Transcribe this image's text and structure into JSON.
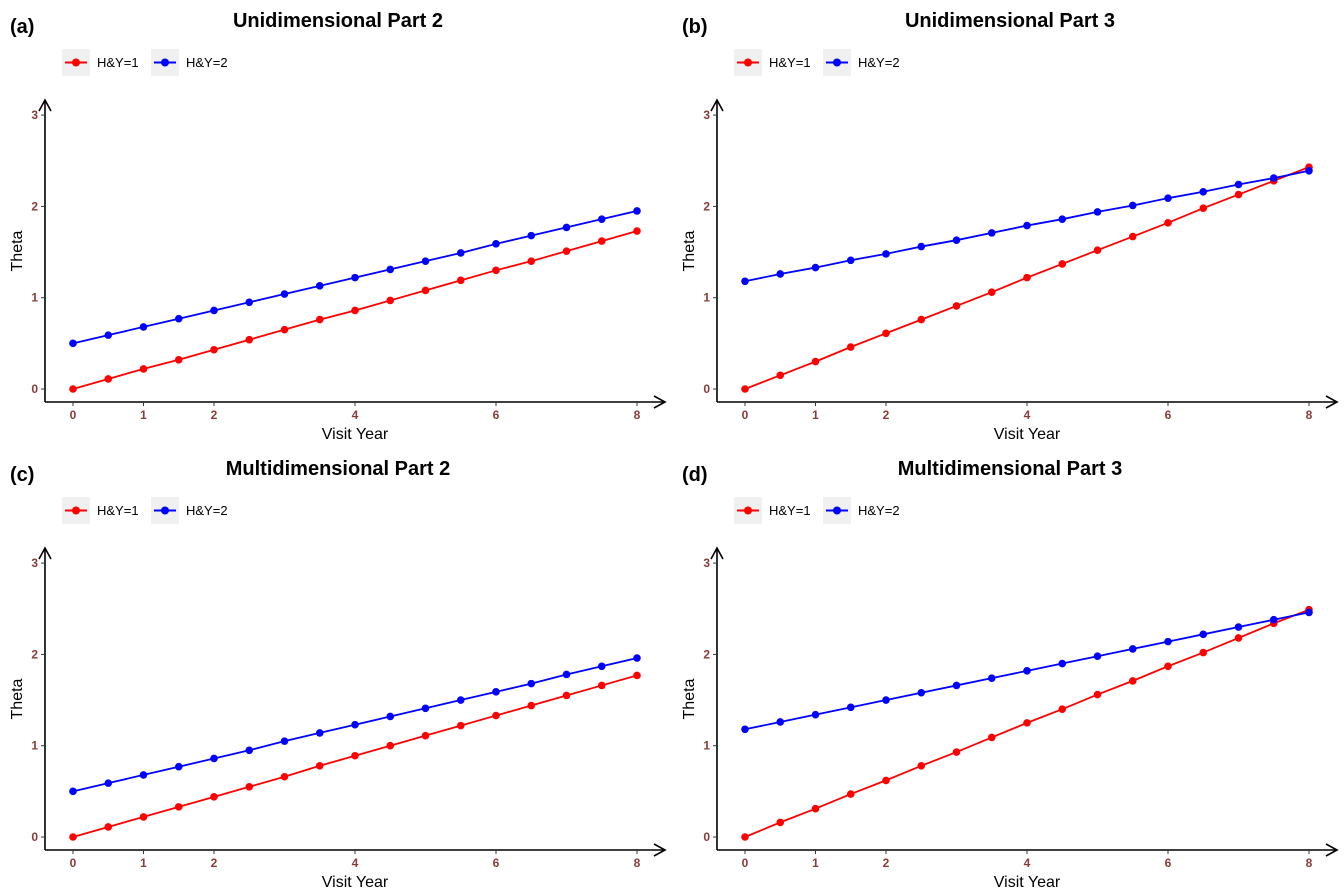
{
  "figure": {
    "panels": [
      {
        "tag": "(a)",
        "title": "Unidimensional Part 2"
      },
      {
        "tag": "(b)",
        "title": "Unidimensional Part 3"
      },
      {
        "tag": "(c)",
        "title": "Multidimensional Part 2"
      },
      {
        "tag": "(d)",
        "title": "Multidimensional Part 3"
      }
    ]
  },
  "chart_data": [
    {
      "type": "line",
      "title": "Unidimensional Part 2",
      "tag": "(a)",
      "xlabel": "Visit Year",
      "ylabel": "Theta",
      "xlim": [
        -0.4,
        8.4
      ],
      "ylim": [
        -0.15,
        3.1
      ],
      "xticks": [
        0,
        1,
        2,
        4,
        6,
        8
      ],
      "yticks": [
        0,
        1,
        2,
        3
      ],
      "legend_position": "top-left",
      "grid": false,
      "x": [
        0,
        0.5,
        1,
        1.5,
        2,
        2.5,
        3,
        3.5,
        4,
        4.5,
        5,
        5.5,
        6,
        6.5,
        7,
        7.5,
        8
      ],
      "series": [
        {
          "name": "H&Y=1",
          "color": "#ff0000",
          "values": [
            0.0,
            0.11,
            0.22,
            0.32,
            0.43,
            0.54,
            0.65,
            0.76,
            0.86,
            0.97,
            1.08,
            1.19,
            1.3,
            1.4,
            1.51,
            1.62,
            1.73
          ]
        },
        {
          "name": "H&Y=2",
          "color": "#0000ff",
          "values": [
            0.5,
            0.59,
            0.68,
            0.77,
            0.86,
            0.95,
            1.04,
            1.13,
            1.22,
            1.31,
            1.4,
            1.49,
            1.59,
            1.68,
            1.77,
            1.86,
            1.95
          ]
        }
      ]
    },
    {
      "type": "line",
      "title": "Unidimensional Part 3",
      "tag": "(b)",
      "xlabel": "Visit Year",
      "ylabel": "Theta",
      "xlim": [
        -0.4,
        8.4
      ],
      "ylim": [
        -0.15,
        3.1
      ],
      "xticks": [
        0,
        1,
        2,
        4,
        6,
        8
      ],
      "yticks": [
        0,
        1,
        2,
        3
      ],
      "legend_position": "top-left",
      "grid": false,
      "x": [
        0,
        0.5,
        1,
        1.5,
        2,
        2.5,
        3,
        3.5,
        4,
        4.5,
        5,
        5.5,
        6,
        6.5,
        7,
        7.5,
        8
      ],
      "series": [
        {
          "name": "H&Y=1",
          "color": "#ff0000",
          "values": [
            0.0,
            0.15,
            0.3,
            0.46,
            0.61,
            0.76,
            0.91,
            1.06,
            1.22,
            1.37,
            1.52,
            1.67,
            1.82,
            1.98,
            2.13,
            2.28,
            2.43
          ]
        },
        {
          "name": "H&Y=2",
          "color": "#0000ff",
          "values": [
            1.18,
            1.26,
            1.33,
            1.41,
            1.48,
            1.56,
            1.63,
            1.71,
            1.79,
            1.86,
            1.94,
            2.01,
            2.09,
            2.16,
            2.24,
            2.31,
            2.39
          ]
        }
      ]
    },
    {
      "type": "line",
      "title": "Multidimensional Part 2",
      "tag": "(c)",
      "xlabel": "Visit Year",
      "ylabel": "Theta",
      "xlim": [
        -0.4,
        8.4
      ],
      "ylim": [
        -0.15,
        3.1
      ],
      "xticks": [
        0,
        1,
        2,
        4,
        6,
        8
      ],
      "yticks": [
        0,
        1,
        2,
        3
      ],
      "legend_position": "top-left",
      "grid": false,
      "x": [
        0,
        0.5,
        1,
        1.5,
        2,
        2.5,
        3,
        3.5,
        4,
        4.5,
        5,
        5.5,
        6,
        6.5,
        7,
        7.5,
        8
      ],
      "series": [
        {
          "name": "H&Y=1",
          "color": "#ff0000",
          "values": [
            0.0,
            0.11,
            0.22,
            0.33,
            0.44,
            0.55,
            0.66,
            0.78,
            0.89,
            1.0,
            1.11,
            1.22,
            1.33,
            1.44,
            1.55,
            1.66,
            1.77
          ]
        },
        {
          "name": "H&Y=2",
          "color": "#0000ff",
          "values": [
            0.5,
            0.59,
            0.68,
            0.77,
            0.86,
            0.95,
            1.05,
            1.14,
            1.23,
            1.32,
            1.41,
            1.5,
            1.59,
            1.68,
            1.78,
            1.87,
            1.96
          ]
        }
      ]
    },
    {
      "type": "line",
      "title": "Multidimensional Part 3",
      "tag": "(d)",
      "xlabel": "Visit Year",
      "ylabel": "Theta",
      "xlim": [
        -0.4,
        8.4
      ],
      "ylim": [
        -0.15,
        3.1
      ],
      "xticks": [
        0,
        1,
        2,
        4,
        6,
        8
      ],
      "yticks": [
        0,
        1,
        2,
        3
      ],
      "legend_position": "top-left",
      "grid": false,
      "x": [
        0,
        0.5,
        1,
        1.5,
        2,
        2.5,
        3,
        3.5,
        4,
        4.5,
        5,
        5.5,
        6,
        6.5,
        7,
        7.5,
        8
      ],
      "series": [
        {
          "name": "H&Y=1",
          "color": "#ff0000",
          "values": [
            0.0,
            0.16,
            0.31,
            0.47,
            0.62,
            0.78,
            0.93,
            1.09,
            1.25,
            1.4,
            1.56,
            1.71,
            1.87,
            2.02,
            2.18,
            2.34,
            2.49
          ]
        },
        {
          "name": "H&Y=2",
          "color": "#0000ff",
          "values": [
            1.18,
            1.26,
            1.34,
            1.42,
            1.5,
            1.58,
            1.66,
            1.74,
            1.82,
            1.9,
            1.98,
            2.06,
            2.14,
            2.22,
            2.3,
            2.38,
            2.46
          ]
        }
      ]
    }
  ]
}
